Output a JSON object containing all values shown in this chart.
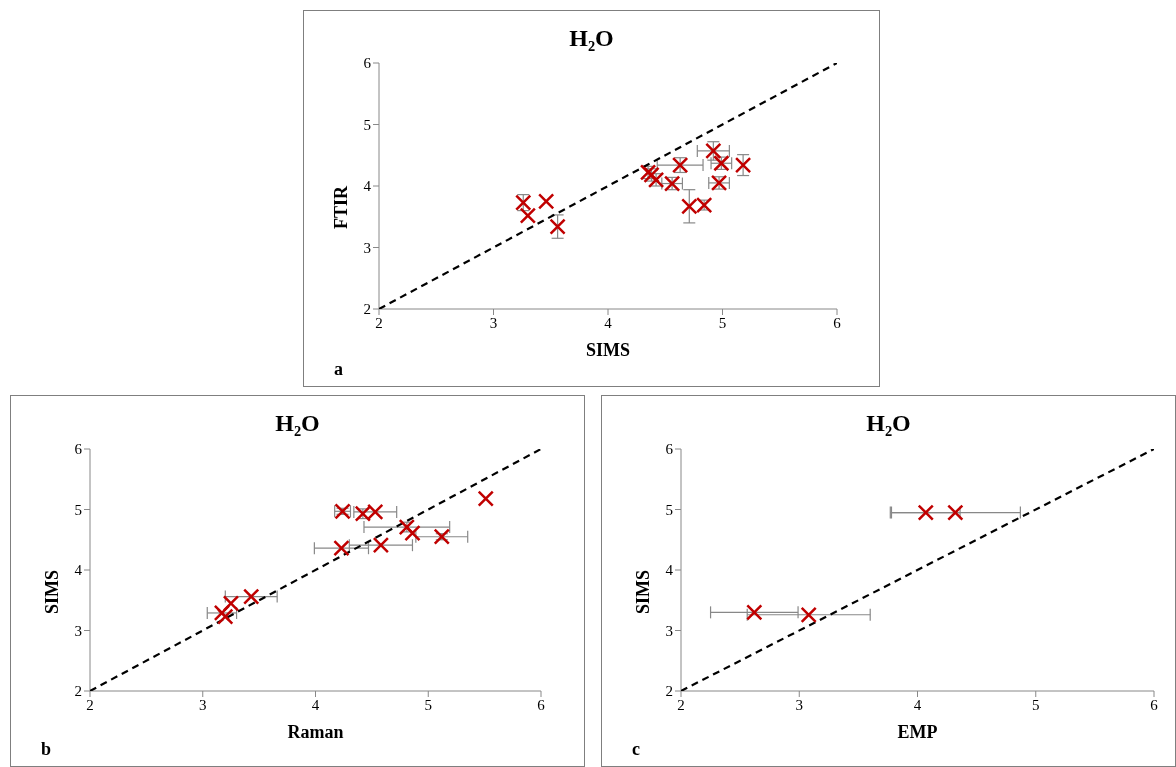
{
  "chart_data": [
    {
      "type": "scatter",
      "title": "H₂O",
      "xlabel": "SIMS",
      "ylabel": "FTIR",
      "annotations": [
        "a"
      ],
      "xlim": [
        2,
        6
      ],
      "ylim": [
        2,
        6
      ],
      "xticks": [
        2,
        3,
        4,
        5,
        6
      ],
      "yticks": [
        2,
        3,
        4,
        5,
        6
      ],
      "series": [
        {
          "type": "line",
          "color": "#000000",
          "line_style": "dashed",
          "x": [
            2,
            6
          ],
          "values": [
            2,
            6
          ]
        },
        {
          "type": "scatter",
          "marker": "cross",
          "color": "#c00000",
          "x": [
            3.26,
            3.46,
            3.3,
            3.56,
            4.35,
            4.38,
            4.42,
            4.63,
            4.56,
            4.71,
            4.84,
            4.92,
            4.99,
            4.97,
            5.18
          ],
          "values": [
            3.73,
            3.75,
            3.52,
            3.34,
            4.22,
            4.18,
            4.1,
            4.34,
            4.04,
            3.67,
            3.69,
            4.57,
            4.37,
            4.05,
            4.34
          ],
          "errors": [
            0.13,
            null,
            null,
            0.19,
            0.1,
            0.1,
            0.1,
            0.12,
            0.1,
            0.27,
            0.08,
            0.15,
            0.1,
            0.1,
            0.17
          ],
          "xerrors": [
            null,
            null,
            null,
            null,
            null,
            null,
            null,
            0.2,
            0.09,
            null,
            null,
            0.14,
            0.09,
            0.09,
            null
          ]
        }
      ]
    },
    {
      "type": "scatter",
      "title": "H₂O",
      "xlabel": "Raman",
      "ylabel": "SIMS",
      "annotations": [
        "b"
      ],
      "xlim": [
        2,
        6
      ],
      "ylim": [
        2,
        6
      ],
      "xticks": [
        2,
        3,
        4,
        5,
        6
      ],
      "yticks": [
        2,
        3,
        4,
        5,
        6
      ],
      "series": [
        {
          "type": "line",
          "color": "#000000",
          "line_style": "dashed",
          "x": [
            2,
            6
          ],
          "values": [
            2,
            6
          ]
        },
        {
          "type": "scatter",
          "marker": "cross",
          "color": "#c00000",
          "x": [
            4.24,
            4.42,
            4.53,
            4.81,
            4.86,
            5.12,
            5.51,
            4.23,
            4.58,
            3.43,
            3.25,
            3.17,
            3.2
          ],
          "values": [
            4.97,
            4.93,
            4.96,
            4.71,
            4.61,
            4.55,
            5.18,
            4.36,
            4.41,
            3.56,
            3.45,
            3.29,
            3.23
          ],
          "errors": [
            0.05,
            0.08,
            null,
            0.08,
            null,
            0.05,
            null,
            null,
            null,
            null,
            null,
            null,
            null
          ],
          "xerrors": [
            0.07,
            null,
            0.19,
            0.38,
            null,
            0.23,
            null,
            0.24,
            0.28,
            0.23,
            null,
            0.13,
            null
          ]
        }
      ]
    },
    {
      "type": "scatter",
      "title": "H₂O",
      "xlabel": "EMP",
      "ylabel": "SIMS",
      "annotations": [
        "c"
      ],
      "xlim": [
        2,
        6
      ],
      "ylim": [
        2,
        6
      ],
      "xticks": [
        2,
        3,
        4,
        5,
        6
      ],
      "yticks": [
        2,
        3,
        4,
        5,
        6
      ],
      "series": [
        {
          "type": "line",
          "color": "#000000",
          "line_style": "dashed",
          "x": [
            2,
            6
          ],
          "values": [
            2,
            6
          ]
        },
        {
          "type": "scatter",
          "marker": "cross",
          "color": "#c00000",
          "x": [
            2.62,
            3.08,
            4.07,
            4.32
          ],
          "values": [
            3.3,
            3.26,
            4.95,
            4.95
          ],
          "xerrors": [
            0.37,
            0.52,
            0.29,
            0.55
          ]
        }
      ]
    }
  ]
}
